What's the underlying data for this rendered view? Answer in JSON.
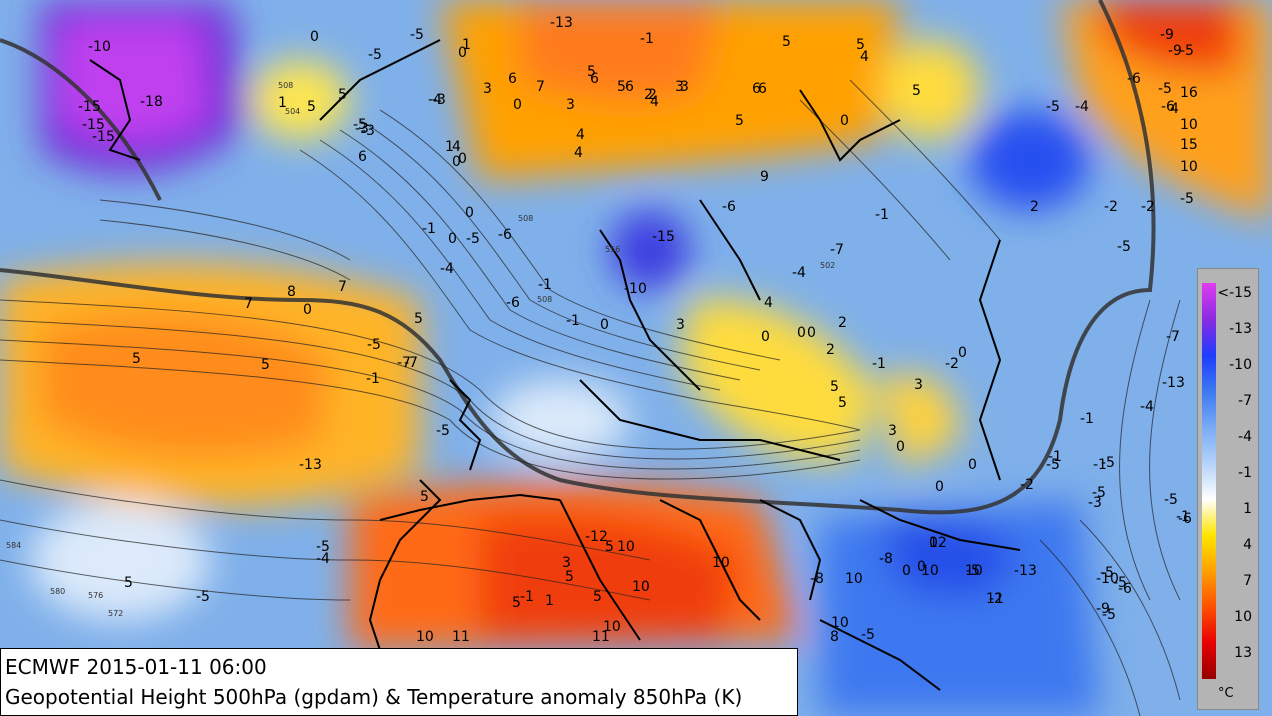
{
  "title": {
    "line1": "ECMWF 2015-01-11 06:00",
    "line2": "Geopotential Height 500hPa (gpdam) & Temperature anomaly 850hPa (K)"
  },
  "legend": {
    "unit": "°C",
    "ticks": [
      "<-15",
      "-13",
      "-10",
      "-7",
      "-4",
      "-1",
      "1",
      "4",
      "7",
      "10",
      "13"
    ],
    "colors": [
      "#e03cf0",
      "#8a2be2",
      "#1e3cff",
      "#3c78f0",
      "#78aaf5",
      "#b4d2fa",
      "#ffffff",
      "#ffe600",
      "#ffa000",
      "#ff5000",
      "#e60000",
      "#960000"
    ]
  },
  "map_colors": {
    "ocean_anom": "#6fa6e6",
    "cold": "#3c6cf0",
    "very_cold": "#6a2cd8",
    "warm": "#ffb400",
    "hot": "#ff5a14",
    "neutral": "#c8e0fa"
  },
  "anomaly_labels": [
    "-10",
    "-15",
    "-15",
    "-18",
    "-15",
    "0",
    "-5",
    "-5",
    "-4",
    "1",
    "0",
    "0",
    "-5",
    "-13",
    "-1",
    "1",
    "5",
    "3",
    "6",
    "5",
    "5",
    "6",
    "6",
    "4",
    "2",
    "2",
    "3",
    "3",
    "3",
    "4",
    "4",
    "5",
    "7",
    "6",
    "6",
    "9",
    "5",
    "5",
    "5",
    "4",
    "0",
    "1",
    "-3",
    "5",
    "4",
    "0",
    "-6",
    "5",
    "-3",
    "6",
    "-1",
    "-10",
    "-15",
    "0",
    "-4",
    "0",
    "-6",
    "-1",
    "3",
    "-6",
    "-4",
    "-1",
    "-7",
    "8",
    "7",
    "0",
    "-5",
    "-7",
    "-7",
    "5",
    "-1",
    "5",
    "7",
    "-1",
    "-3",
    "0",
    "-5",
    "0",
    "4",
    "2",
    "0",
    "0",
    "0",
    "2",
    "-1",
    "3",
    "-2",
    "0",
    "5",
    "5",
    "3",
    "0",
    "0",
    "0",
    "-2",
    "-5",
    "-1",
    "2",
    "-2",
    "-5",
    "-4",
    "-5",
    "-2",
    "-1",
    "-4",
    "-13",
    "-7",
    "-5",
    "-9",
    "-9",
    "-5",
    "-6",
    "-5",
    "-6",
    "4",
    "16",
    "15",
    "10",
    "10",
    "-12",
    "10",
    "3",
    "5",
    "5",
    "5",
    "10",
    "10",
    "11",
    "10",
    "11",
    "10",
    "12",
    "10",
    "10",
    "10",
    "11",
    "8",
    "10",
    "-13",
    "-10",
    "-3",
    "-5",
    "-8",
    "-5",
    "-6",
    "-5",
    "-5",
    "-1",
    "-5",
    "-5",
    "-1",
    "-9",
    "-8",
    "0",
    "0",
    "0",
    "-5",
    "-2",
    "-5",
    "-6",
    "-5",
    "-4",
    "-13",
    "-5",
    "-5",
    "5",
    "5",
    "5",
    "-1",
    "1",
    "-1",
    "4",
    "5",
    "5"
  ],
  "height_labels": [
    "580",
    "576",
    "572",
    "584",
    "508",
    "508",
    "502",
    "508",
    "504",
    "556"
  ]
}
